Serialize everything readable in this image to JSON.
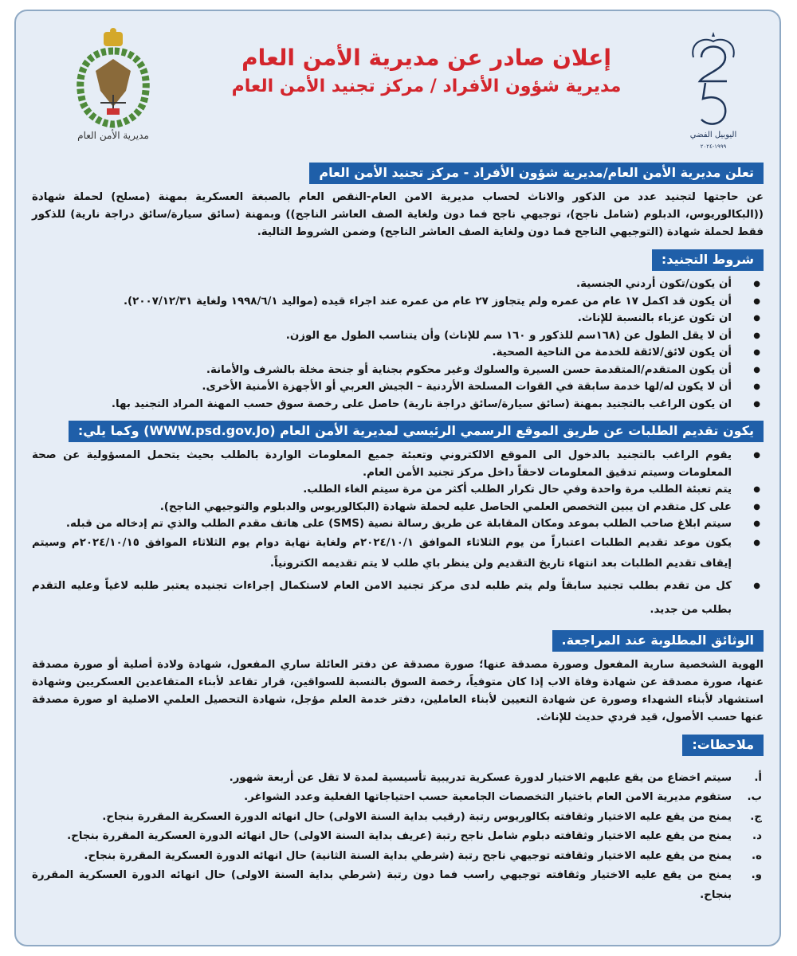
{
  "header": {
    "title": "إعلان صادر عن مديرية الأمن العام",
    "subtitle": "مديرية شؤون الأفراد / مركز تجنيد الأمن العام",
    "logo_right_text": "اليوبيل الفضي",
    "logo_right_years": "١٩٩٩-٢٠٢٤",
    "logo_left_text": "مديرية الأمن العام"
  },
  "colors": {
    "accent": "#1f5fa9",
    "title": "#d3252c",
    "background": "#e6edf6"
  },
  "intro": {
    "heading": "تعلن مديرية الأمن العام/مديرية شؤون الأفراد - مركز تجنيد الأمن العام",
    "text": "عن حاجتها لتجنيد عدد من الذكور والاناث لحساب مديرية الامن العام-النقص العام بالصبغة العسكرية بمهنة (مسلح) لحملة شهادة ((البكالوريوس، الدبلوم (شامل ناجح)، توجيهي ناجح فما دون ولغاية الصف العاشر الناجح)) وبمهنة (سائق سيارة/سائق دراجة نارية) للذكور فقط لحملة شهادة (التوجيهي الناجح فما دون ولغاية الصف العاشر الناجح) وضمن الشروط التالية."
  },
  "conditions": {
    "heading": "شروط التجنيد:",
    "items": [
      "أن يكون/تكون أردني الجنسية.",
      "أن يكون قد اكمل ١٧ عام من عمره ولم يتجاوز ٢٧ عام من عمره عند اجراء قيده (مواليد ١٩٩٨/٦/١ ولغاية ٢٠٠٧/١٢/٣١).",
      "ان تكون عزباء بالنسبة للإناث.",
      "أن لا يقل الطول عن (١٦٨سم للذكور و ١٦٠ سم للإناث) وأن يتناسب الطول مع الوزن.",
      "أن يكون لائق/لائقة للخدمة من الناحية الصحية.",
      "أن يكون المتقدم/المتقدمة حسن السيرة والسلوك وغير محكوم بجناية أو جنحة مخلة بالشرف والأمانة.",
      "أن لا يكون له/لها خدمة سابقة في القوات المسلحة الأردنية – الجيش العربي أو الأجهزة الأمنية الأخرى.",
      "ان يكون الراغب بالتجنيد بمهنة (سائق سيارة/سائق دراجة نارية) حاصل على رخصة سوق حسب المهنة المراد التجنيد بها."
    ]
  },
  "application": {
    "heading": "يكون تقديم الطلبات عن طريق الموقع الرسمي الرئيسي لمديرية الأمن العام (WWW.psd.gov.Jo) وكما يلي:",
    "items": [
      "يقوم الراغب بالتجنيد بالدخول الى الموقع الالكتروني وتعبئة جميع المعلومات الواردة بالطلب بحيث يتحمل المسؤولية عن صحة المعلومات وسيتم تدقيق المعلومات لاحقاً داخل مركز تجنيد الأمن العام.",
      "يتم تعبئة الطلب مرة واحدة وفي حال تكرار الطلب أكثر من مرة سيتم الغاء الطلب.",
      "على كل متقدم ان يبين التخصص العلمي الحاصل عليه لحملة شهادة (البكالوريوس والدبلوم والتوجيهي الناجح).",
      "سيتم ابلاغ صاحب الطلب بموعد ومكان المقابلة عن طريق رسالة نصية (SMS) على هاتف مقدم الطلب والذي تم إدخاله من قبله.",
      "يكون موعد تقديم الطلبات اعتباراً من يوم الثلاثاء الموافق ٢٠٢٤/١٠/١م ولغاية نهاية دوام يوم الثلاثاء الموافق ٢٠٢٤/١٠/١٥م وسيتم إيقاف تقديم الطلبات بعد انتهاء تاريخ التقديم ولن ينظر باي طلب لا يتم تقديمه الكترونياً.",
      "كل من تقدم بطلب تجنيد سابقاً ولم يتم طلبه لدى مركز تجنيد الامن العام لاستكمال إجراءات تجنيده يعتبر طلبه لاغياً وعليه التقدم بطلب من جديد."
    ]
  },
  "documents": {
    "heading": "الوثائق المطلوبة عند المراجعة.",
    "text": "الهوية الشخصية سارية المفعول وصورة مصدقة عنها؛ صورة مصدقة عن دفتر العائلة ساري المفعول، شهادة ولادة أصلية أو صورة مصدقة عنها، صورة مصدقة عن شهادة وفاة الاب إذا كان متوفياً، رخصة السوق بالنسبة للسواقين، قرار تقاعد لأبناء المتقاعدين العسكريين وشهادة استشهاد لأبناء الشهداء وصورة عن شهادة التعيين لأبناء العاملين، دفتر خدمة العلم مؤجل، شهادة التحصيل العلمي الاصلية او صورة مصدقة عنها حسب الأصول، قيد فردي حديث للإناث."
  },
  "notes": {
    "heading": "ملاحظات:",
    "items": [
      {
        "marker": "أ.",
        "text": "سيتم اخضاع من يقع عليهم الاختيار لدورة عسكرية تدريبية تأسيسية لمدة لا تقل عن أربعة شهور."
      },
      {
        "marker": "ب.",
        "text": "ستقوم مديرية الامن العام باختيار التخصصات الجامعية حسب احتياجاتها الفعلية وعدد الشواغر."
      },
      {
        "marker": "ج.",
        "text": "يمنح من يقع عليه الاختيار وثقافته بكالوريوس رتبة (رقيب بداية السنة الاولى) حال انهائه الدورة العسكرية المقررة بنجاح."
      },
      {
        "marker": "د.",
        "text": "يمنح من يقع عليه الاختيار وثقافته دبلوم شامل ناجح رتبة (عريف بداية السنة الاولى) حال انهائه الدورة العسكرية المقررة بنجاح."
      },
      {
        "marker": "ه.",
        "text": "يمنح من يقع عليه الاختيار وثقافته توجيهي ناجح رتبة (شرطي بداية السنة الثانية) حال انهائه الدورة العسكرية المقررة بنجاح."
      },
      {
        "marker": "و.",
        "text": "يمنح من يقع عليه الاختيار وثقافته توجيهي راسب فما دون رتبة (شرطي بداية السنة الاولى) حال انهائه الدورة العسكرية المقررة بنجاح."
      }
    ]
  }
}
